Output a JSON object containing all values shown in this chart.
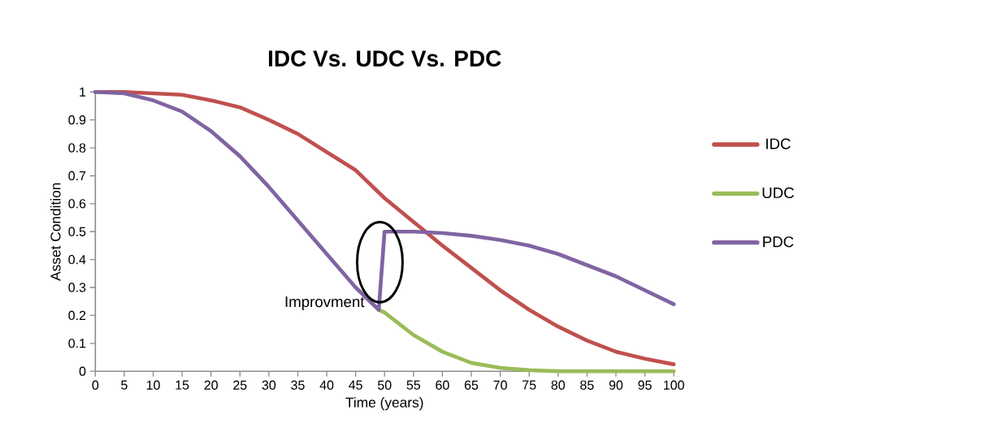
{
  "chart_data": {
    "type": "line",
    "title": "IDC Vs. UDC Vs. PDC",
    "xlabel": "Time (years)",
    "ylabel": "Asset Condition",
    "xlim": [
      0,
      100
    ],
    "xticks": [
      0,
      5,
      10,
      15,
      20,
      25,
      30,
      35,
      40,
      45,
      50,
      55,
      60,
      65,
      70,
      75,
      80,
      85,
      90,
      95,
      100
    ],
    "ylim": [
      0,
      1
    ],
    "yticks": [
      0,
      0.1,
      0.2,
      0.3,
      0.4,
      0.5,
      0.6,
      0.7,
      0.8,
      0.9,
      1
    ],
    "legend": "right",
    "marker": "none",
    "line_style": "solid",
    "series": [
      {
        "name": "IDC",
        "color": "#c0504d",
        "x": [
          0,
          5,
          10,
          15,
          20,
          25,
          30,
          35,
          40,
          45,
          50,
          55,
          60,
          65,
          70,
          75,
          80,
          85,
          90,
          95,
          100
        ],
        "values": [
          1,
          1,
          0.995,
          0.99,
          0.97,
          0.945,
          0.9,
          0.85,
          0.785,
          0.72,
          0.62,
          0.535,
          0.45,
          0.37,
          0.29,
          0.22,
          0.16,
          0.11,
          0.07,
          0.045,
          0.025
        ]
      },
      {
        "name": "UDC",
        "color": "#9bbb59",
        "x": [
          49,
          50,
          55,
          60,
          65,
          70,
          75,
          80,
          85,
          90,
          95,
          100
        ],
        "values": [
          0.22,
          0.21,
          0.13,
          0.07,
          0.03,
          0.012,
          0.004,
          0,
          0,
          0,
          0,
          0
        ]
      },
      {
        "name": "PDC",
        "color": "#8064a2",
        "x": [
          0,
          5,
          10,
          15,
          20,
          25,
          30,
          35,
          40,
          45,
          49,
          50,
          55,
          60,
          65,
          70,
          75,
          80,
          85,
          90,
          95,
          100
        ],
        "values": [
          1,
          0.995,
          0.97,
          0.93,
          0.86,
          0.77,
          0.66,
          0.54,
          0.42,
          0.3,
          0.22,
          0.5,
          0.5,
          0.495,
          0.485,
          0.47,
          0.45,
          0.42,
          0.38,
          0.34,
          0.29,
          0.24
        ]
      }
    ],
    "annotations": [
      {
        "text": "Improvment",
        "x": 49,
        "y": 0.22
      }
    ]
  }
}
